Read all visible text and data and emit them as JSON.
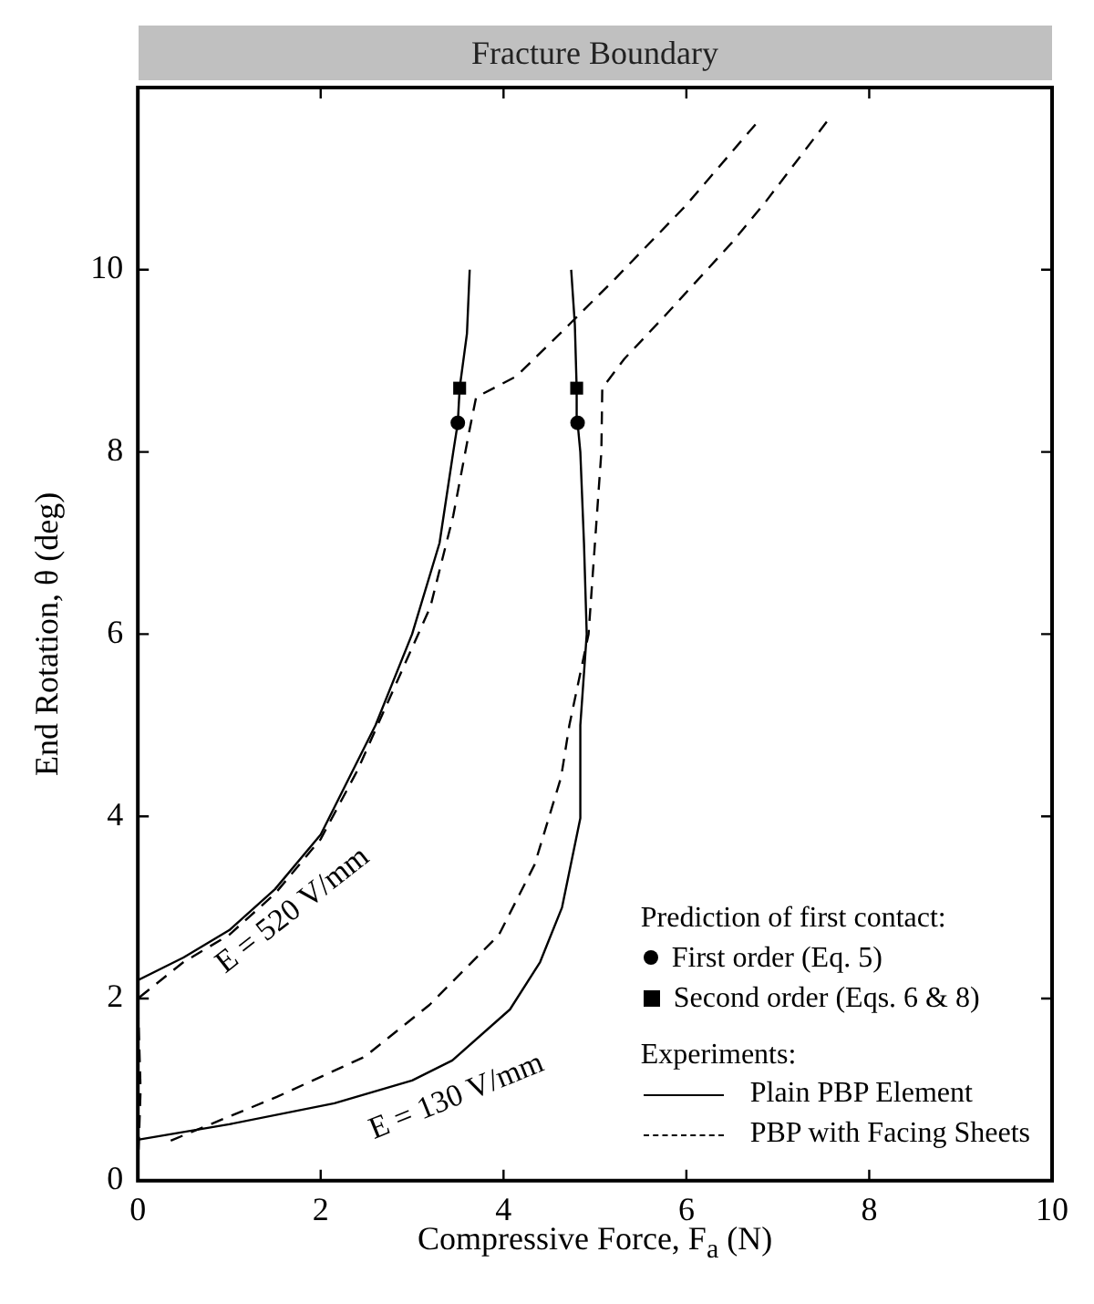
{
  "chart_data": {
    "type": "line",
    "xlabel": "Compressive Force, F$_{a}$ (N)",
    "ylabel": "End Rotation, θ (deg)",
    "xlim": [
      0,
      10
    ],
    "xticks": [
      0,
      2,
      4,
      6,
      8,
      10
    ],
    "ylim": [
      0,
      12
    ],
    "yticks": [
      0,
      2,
      4,
      6,
      8,
      10
    ],
    "grid": false,
    "legend": "bottom right",
    "legend_title": "Prediction of first contact:",
    "annotations": [
      "Fracture Boundary",
      "Experiments:",
      "E = 520 V/mm",
      "E = 130 V/mm"
    ],
    "series": [
      {
        "name": "Plain PBP Element",
        "line_style": "solid",
        "color": "#000000",
        "x": [
          0,
          0.5,
          1,
          1.5,
          2,
          2.2,
          2.6,
          3.0,
          3.3,
          3.45,
          3.5,
          3.52,
          3.6,
          3.63
        ],
        "values": [
          2.2,
          2.45,
          2.75,
          3.2,
          3.8,
          4.2,
          5,
          6,
          7,
          8,
          8.32,
          8.7,
          9.3,
          10
        ]
      },
      {
        "line_style": "solid",
        "color": "#000000",
        "x": [
          0,
          1,
          2.15,
          3,
          3.44,
          4.07,
          4.4,
          4.64,
          4.84,
          4.84,
          4.91,
          4.88,
          4.84,
          4.81,
          4.8,
          4.78,
          4.74
        ],
        "values": [
          0.45,
          0.62,
          0.85,
          1.1,
          1.32,
          1.88,
          2.4,
          3.0,
          3.98,
          5,
          6,
          7,
          8,
          8.32,
          8.7,
          9.4,
          10
        ]
      },
      {
        "name": "PBP with Facing Sheets",
        "line_style": "dashed",
        "color": "#000000",
        "x": [
          0,
          0.03,
          0,
          0.5,
          1,
          1.5,
          2,
          2.4,
          2.8,
          3.2,
          3.45,
          3.62,
          3.7,
          4.14,
          4.72,
          5.22,
          5.99,
          6.76
        ],
        "values": [
          0.1,
          1.0,
          2.0,
          2.4,
          2.7,
          3.15,
          3.75,
          4.5,
          5.4,
          6.3,
          7.3,
          8.2,
          8.6,
          8.83,
          9.4,
          9.9,
          10.7,
          11.6
        ]
      },
      {
        "line_style": "dashed",
        "color": "#000000",
        "x": [
          0.36,
          1.52,
          2.48,
          3.19,
          3.95,
          4.34,
          4.63,
          4.72,
          4.93,
          5.0,
          5.07,
          5.08,
          5.32,
          5.77,
          6.5,
          6.87,
          7.54
        ],
        "values": [
          0.44,
          0.92,
          1.36,
          1.93,
          2.7,
          3.47,
          4.43,
          5,
          6,
          7,
          8,
          8.7,
          9.02,
          9.5,
          10.3,
          10.75,
          11.63
        ]
      },
      {
        "name": "First order (Eq. 5)",
        "type": "scatter",
        "marker": "circle",
        "color": "#000000",
        "x": [
          3.5,
          4.81
        ],
        "values": [
          8.32,
          8.32
        ]
      },
      {
        "name": "Second order (Eqs. 6 & 8)",
        "type": "scatter",
        "marker": "square",
        "color": "#000000",
        "x": [
          3.52,
          4.8
        ],
        "values": [
          8.7,
          8.7
        ]
      }
    ]
  }
}
